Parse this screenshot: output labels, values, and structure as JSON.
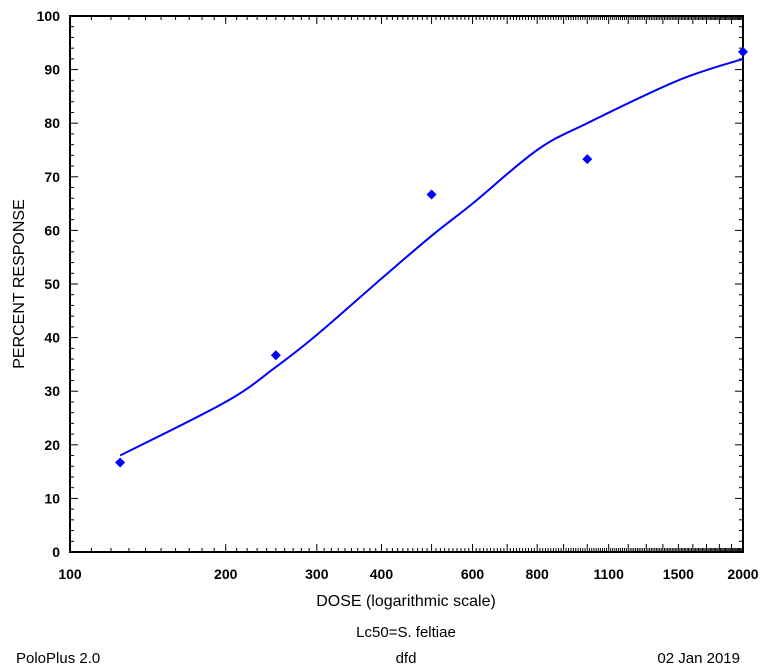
{
  "chart_data": {
    "type": "scatter",
    "xscale": "log",
    "xlabel": "DOSE  (logarithmic scale)",
    "ylabel": "PERCENT  RESPONSE",
    "xlim": [
      100,
      2000
    ],
    "ylim": [
      0,
      100
    ],
    "x_tick_labels": [
      "100",
      "200",
      "300",
      "400",
      "600",
      "800",
      "1100",
      "1500",
      "2000"
    ],
    "y_tick_labels": [
      "0",
      "10",
      "20",
      "30",
      "40",
      "50",
      "60",
      "70",
      "80",
      "90",
      "100"
    ],
    "series": [
      {
        "type": "scatter",
        "marker": "diamond",
        "color": "#0000ff",
        "x": [
          125,
          250,
          500,
          1000,
          2000
        ],
        "y": [
          16.7,
          36.7,
          66.7,
          73.3,
          93.3
        ]
      },
      {
        "type": "line",
        "color": "#0000ff",
        "fit": "probit",
        "x": [
          125,
          200,
          250,
          300,
          400,
          500,
          600,
          800,
          1000,
          1500,
          2000
        ],
        "y": [
          18.0,
          28.0,
          34.5,
          40.5,
          51.0,
          59.0,
          65.0,
          75.0,
          80.0,
          88.0,
          92.0
        ]
      }
    ],
    "grid": false
  },
  "footer": {
    "caption": "Lc50=S. feltiae",
    "left": "PoloPlus 2.0",
    "center": "dfd",
    "right": "02 Jan 2019"
  }
}
